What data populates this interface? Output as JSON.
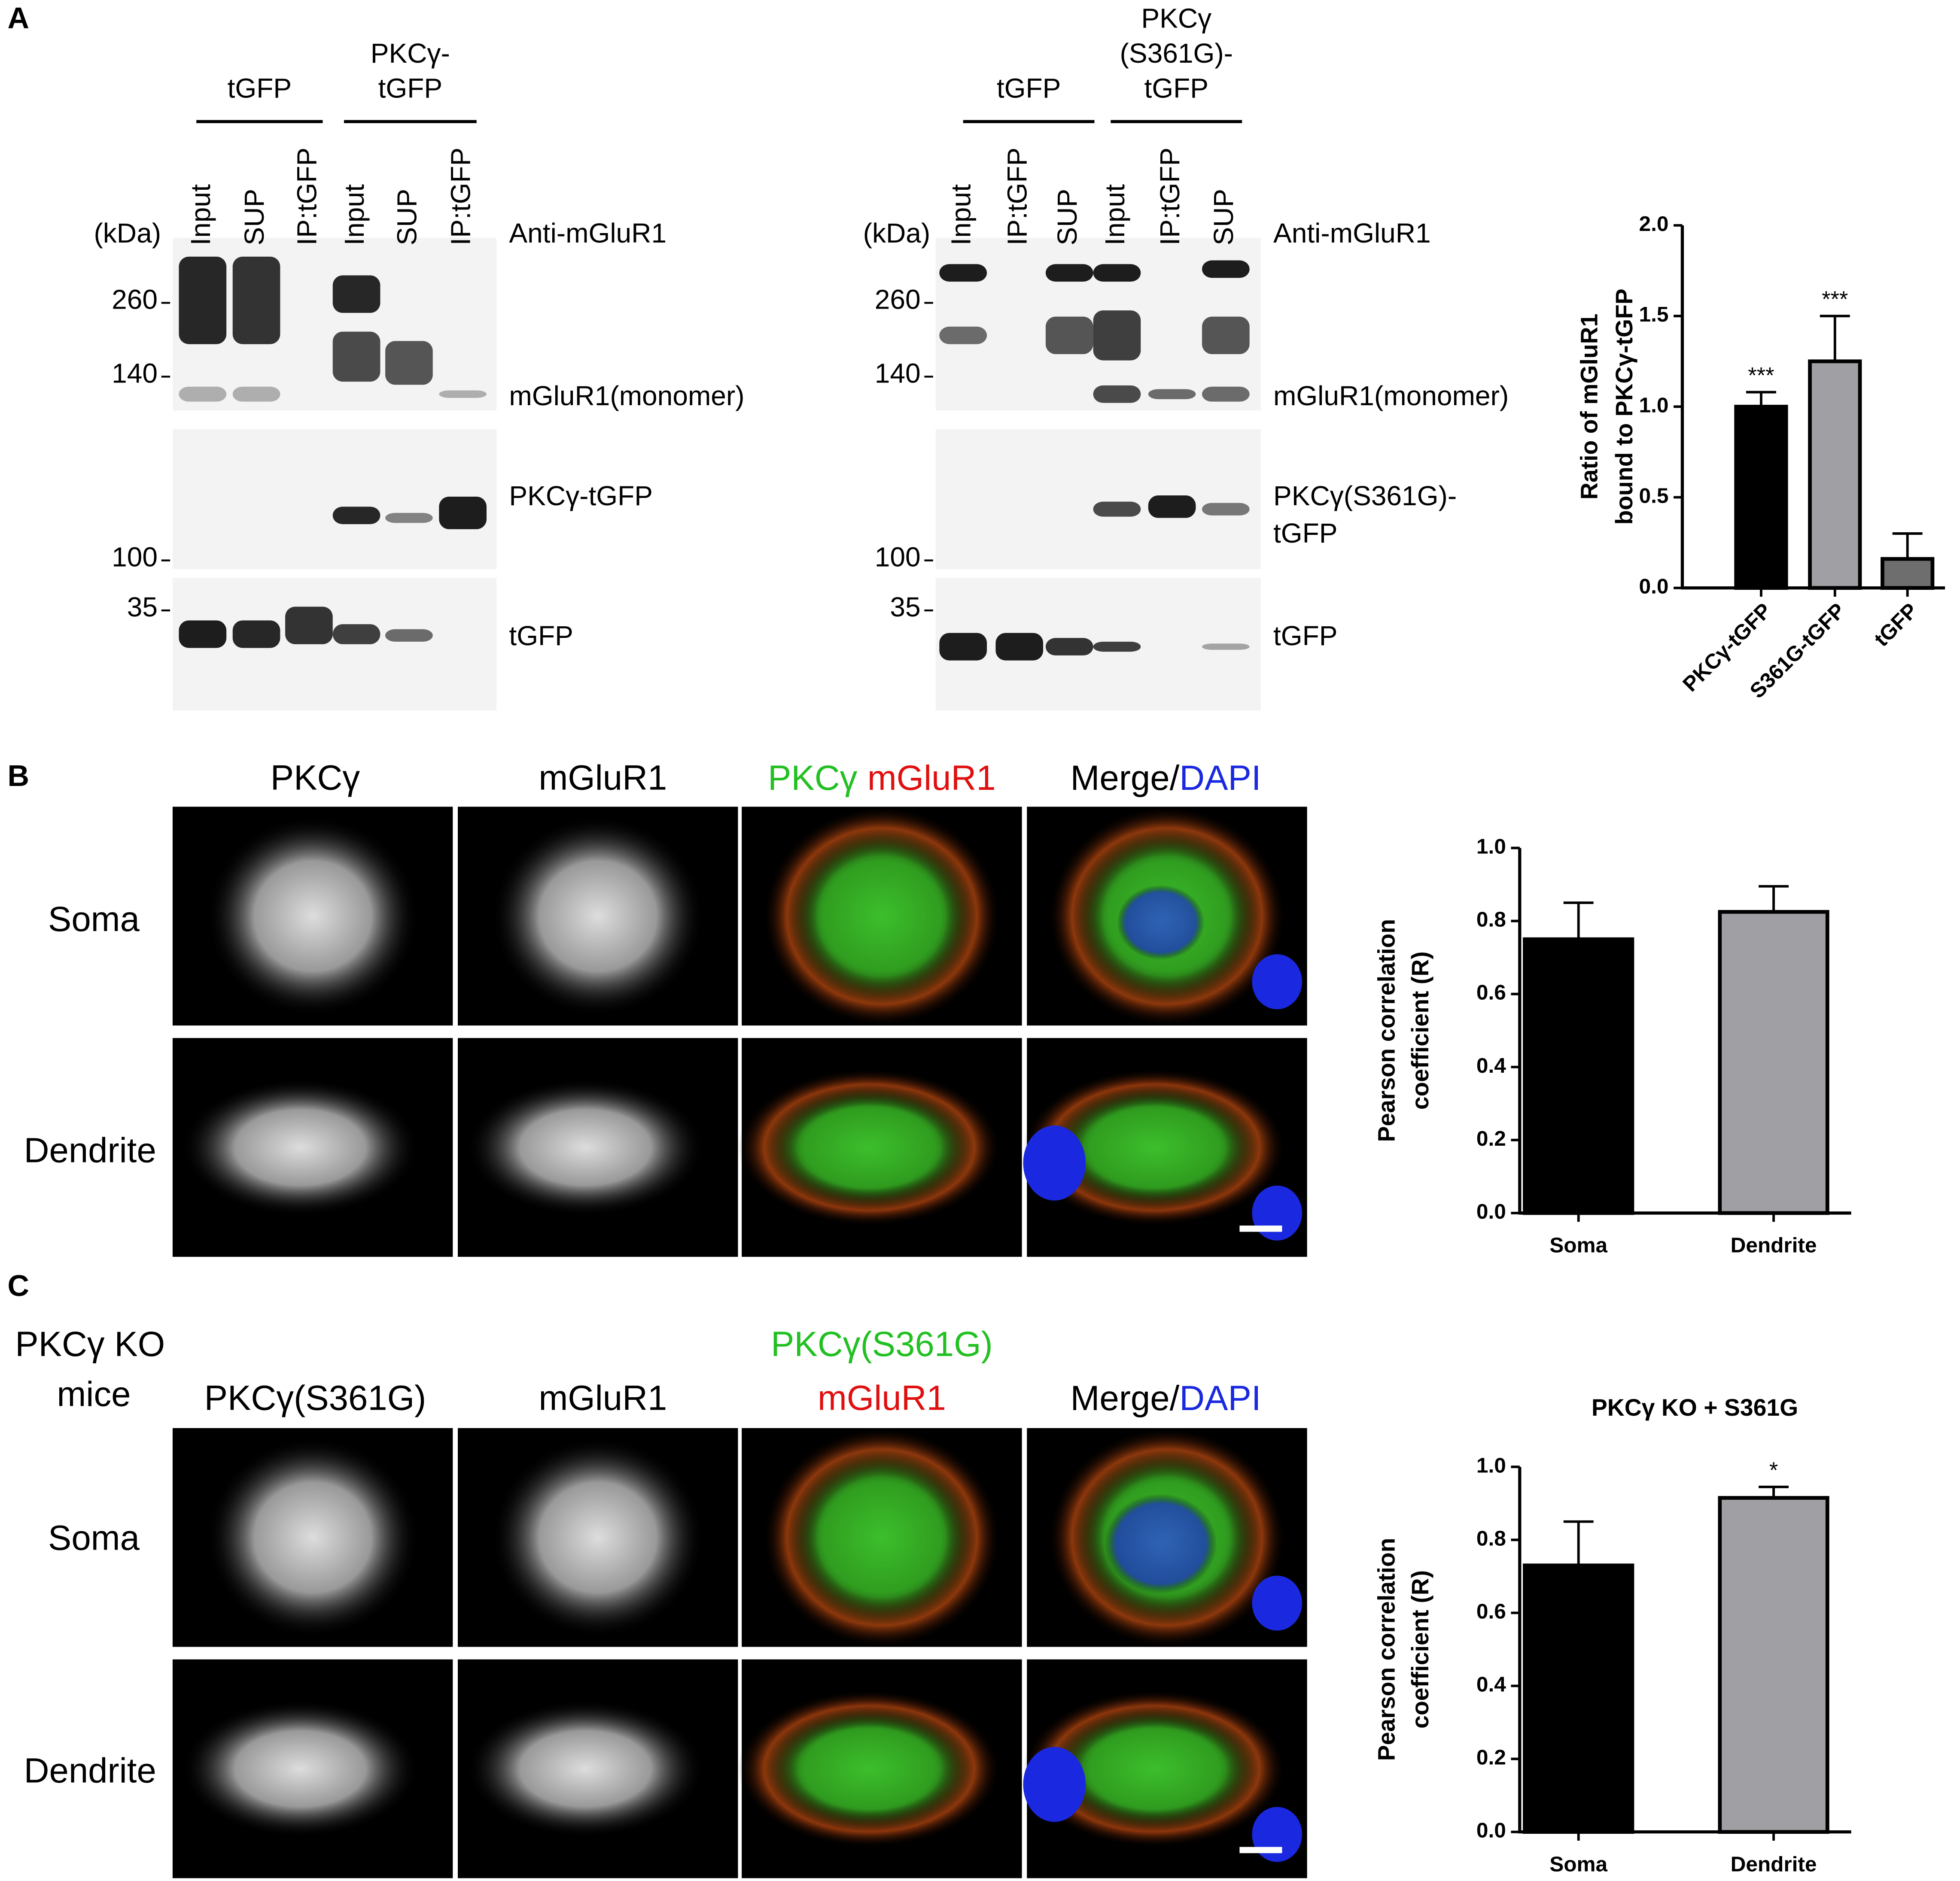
{
  "panel_a": {
    "label": "A",
    "left_blot": {
      "groups": [
        [
          "tGFP"
        ],
        [
          "PKCγ-",
          "tGFP"
        ]
      ],
      "lanes": [
        "Input",
        "SUP",
        "IP:tGFP",
        "Input",
        "SUP",
        "IP:tGFP"
      ],
      "unit": "(kDa)",
      "antibody": "Anti-mGluR1",
      "markers": [
        260,
        140,
        100,
        35
      ],
      "bands": [
        [
          "mGluR1(monomer)"
        ],
        [
          "PKCγ-tGFP"
        ],
        [
          "tGFP"
        ]
      ]
    },
    "right_blot": {
      "groups": [
        [
          "tGFP"
        ],
        [
          "PKCγ",
          "(S361G)-",
          "tGFP"
        ]
      ],
      "lanes": [
        "Input",
        "IP:tGFP",
        "SUP",
        "Input",
        "IP:tGFP",
        "SUP"
      ],
      "unit": "(kDa)",
      "antibody": "Anti-mGluR1",
      "markers": [
        260,
        140,
        100,
        35
      ],
      "bands": [
        [
          "mGluR1(monomer)"
        ],
        [
          "PKCγ(S361G)-",
          "tGFP"
        ],
        [
          "tGFP"
        ]
      ]
    }
  },
  "panel_b": {
    "label": "B",
    "columns": [
      [
        "PKCγ"
      ],
      [
        "mGluR1"
      ],
      [
        "PKCγ",
        "mGluR1"
      ],
      [
        "Merge/",
        "DAPI"
      ]
    ],
    "rows": [
      "Soma",
      "Dendrite"
    ]
  },
  "panel_c": {
    "label": "C",
    "condition": [
      "PKCγ KO",
      "mice"
    ],
    "columns": [
      [
        "PKCγ(S361G)"
      ],
      [
        "mGluR1"
      ],
      [
        "PKCγ(S361G)",
        "mGluR1"
      ],
      [
        "Merge/",
        "DAPI"
      ]
    ],
    "rows": [
      "Soma",
      "Dendrite"
    ]
  },
  "chart_data": [
    {
      "type": "bar",
      "ylabel": [
        "Ratio of mGluR1",
        "bound to PKCγ-tGFP"
      ],
      "categories": [
        "PKCγ-tGFP",
        "S361G-tGFP",
        "tGFP"
      ],
      "values": [
        1.0,
        1.25,
        0.16
      ],
      "errors": [
        0.08,
        0.25,
        0.14
      ],
      "significance": [
        "***",
        "***",
        null
      ],
      "colors": [
        "#000000",
        "#a0a0a4",
        "#6e6e6e"
      ],
      "ylim": [
        0,
        2
      ],
      "yticks": [
        {
          "value": 0,
          "label": "0.0"
        },
        0.5,
        {
          "value": 1,
          "label": "1.0"
        },
        1.5,
        {
          "value": 2,
          "label": "2.0"
        }
      ],
      "grid": false
    },
    {
      "type": "bar",
      "ylabel": [
        "Pearson correlation",
        "coefficient (R)"
      ],
      "categories": [
        "Soma",
        "Dendrite"
      ],
      "values": [
        0.75,
        0.825
      ],
      "errors": [
        0.1,
        0.07
      ],
      "significance": [
        null,
        null
      ],
      "colors": [
        "#000000",
        "#a0a0a4"
      ],
      "ylim": [
        0,
        1
      ],
      "yticks": [
        {
          "value": 0,
          "label": "0.0"
        },
        0.2,
        0.4,
        0.6,
        0.8,
        {
          "value": 1,
          "label": "1.0"
        }
      ],
      "grid": false
    },
    {
      "type": "bar",
      "title": "PKCγ KO + S361G",
      "ylabel": [
        "Pearson correlation",
        "coefficient (R)"
      ],
      "categories": [
        "Soma",
        "Dendrite"
      ],
      "values": [
        0.73,
        0.915
      ],
      "errors": [
        0.12,
        0.03
      ],
      "significance": [
        null,
        "*"
      ],
      "colors": [
        "#000000",
        "#a0a0a4"
      ],
      "ylim": [
        0,
        1
      ],
      "yticks": [
        {
          "value": 0,
          "label": "0.0"
        },
        0.2,
        0.4,
        0.6,
        0.8,
        {
          "value": 1,
          "label": "1.0"
        }
      ],
      "grid": false
    }
  ]
}
